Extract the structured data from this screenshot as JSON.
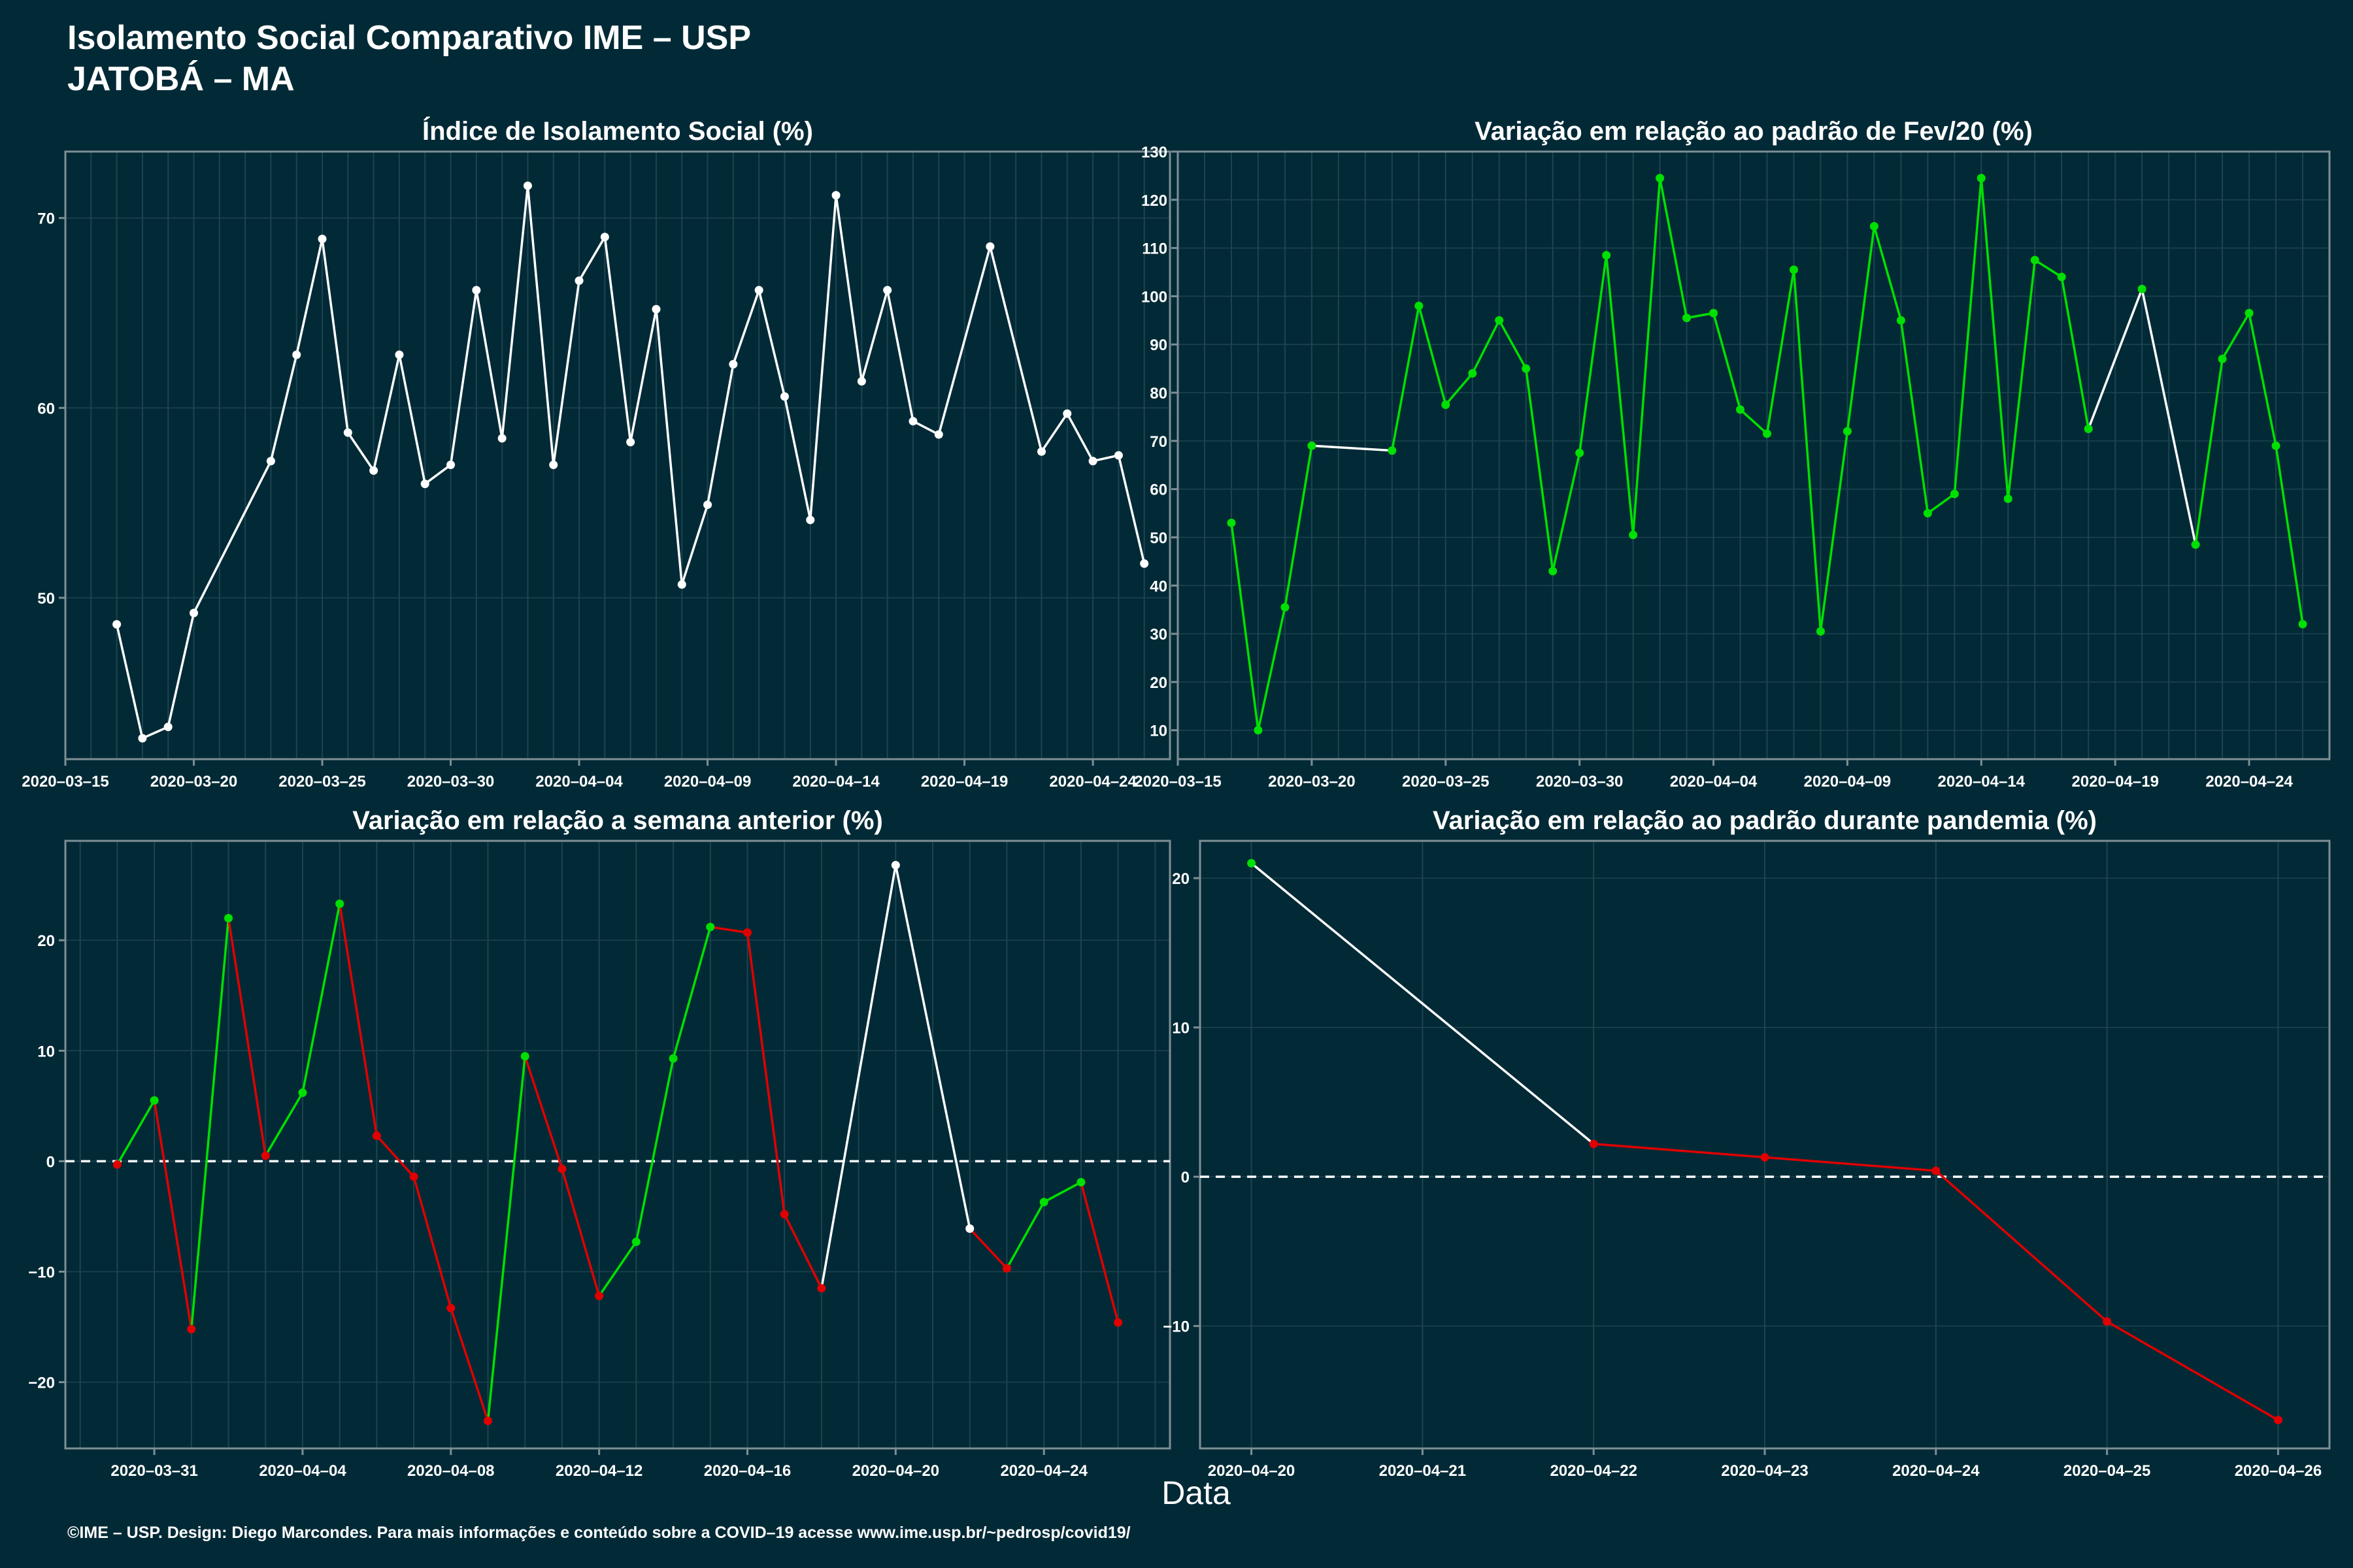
{
  "header": {
    "title_line1": "Isolamento Social Comparativo IME – USP",
    "title_line2": "JATOBÁ – MA"
  },
  "x_axis_label": "Data",
  "footer": "©IME – USP. Design: Diego Marcondes. Para mais informações e conteúdo sobre a COVID–19 acesse www.ime.usp.br/~pedrosp/covid19/",
  "colors": {
    "background": "#022a36",
    "neutral": "#ffffff",
    "increase": "#00e000",
    "decrease": "#e00000",
    "grid": "#1d4450"
  },
  "chart_data": [
    {
      "id": "isolamento",
      "type": "line",
      "title": "Índice de Isolamento Social (%)",
      "x_tick_labels": [
        "2020–03–15",
        "2020–03–20",
        "2020–03–25",
        "2020–03–30",
        "2020–04–04",
        "2020–04–09",
        "2020–04–14",
        "2020–04–19",
        "2020–04–24"
      ],
      "x_ticks": [
        "2020-03-15",
        "2020-03-20",
        "2020-03-25",
        "2020-03-30",
        "2020-04-04",
        "2020-04-09",
        "2020-04-14",
        "2020-04-19",
        "2020-04-24"
      ],
      "xlim": [
        "2020-03-15",
        "2020-04-27"
      ],
      "y_ticks": [
        50,
        60,
        70
      ],
      "ylim": [
        41.5,
        73.5
      ],
      "grid": true,
      "color_mode": "white",
      "points": [
        [
          "2020-03-17",
          48.6
        ],
        [
          "2020-03-18",
          42.6
        ],
        [
          "2020-03-19",
          43.2
        ],
        [
          "2020-03-20",
          49.2
        ],
        [
          "2020-03-23",
          57.2
        ],
        [
          "2020-03-24",
          62.8
        ],
        [
          "2020-03-25",
          68.9
        ],
        [
          "2020-03-26",
          58.7
        ],
        [
          "2020-03-27",
          56.7
        ],
        [
          "2020-03-28",
          62.8
        ],
        [
          "2020-03-29",
          56.0
        ],
        [
          "2020-03-30",
          57.0
        ],
        [
          "2020-03-31",
          66.2
        ],
        [
          "2020-04-01",
          58.4
        ],
        [
          "2020-04-02",
          71.7
        ],
        [
          "2020-04-03",
          57.0
        ],
        [
          "2020-04-04",
          66.7
        ],
        [
          "2020-04-05",
          69.0
        ],
        [
          "2020-04-06",
          58.2
        ],
        [
          "2020-04-07",
          65.2
        ],
        [
          "2020-04-08",
          50.7
        ],
        [
          "2020-04-09",
          54.9
        ],
        [
          "2020-04-10",
          62.3
        ],
        [
          "2020-04-11",
          66.2
        ],
        [
          "2020-04-12",
          60.6
        ],
        [
          "2020-04-13",
          54.1
        ],
        [
          "2020-04-14",
          71.2
        ],
        [
          "2020-04-15",
          61.4
        ],
        [
          "2020-04-16",
          66.2
        ],
        [
          "2020-04-17",
          59.3
        ],
        [
          "2020-04-18",
          58.6
        ],
        [
          "2020-04-20",
          68.5
        ],
        [
          "2020-04-22",
          57.7
        ],
        [
          "2020-04-23",
          59.7
        ],
        [
          "2020-04-24",
          57.2
        ],
        [
          "2020-04-25",
          57.5
        ],
        [
          "2020-04-26",
          51.8
        ]
      ]
    },
    {
      "id": "fev20",
      "type": "line",
      "title": "Variação em relação ao padrão de Fev/20 (%)",
      "x_tick_labels": [
        "2020–03–15",
        "2020–03–20",
        "2020–03–25",
        "2020–03–30",
        "2020–04–04",
        "2020–04–09",
        "2020–04–14",
        "2020–04–19",
        "2020–04–24"
      ],
      "x_ticks": [
        "2020-03-15",
        "2020-03-20",
        "2020-03-25",
        "2020-03-30",
        "2020-04-04",
        "2020-04-09",
        "2020-04-14",
        "2020-04-19",
        "2020-04-24"
      ],
      "xlim": [
        "2020-03-15",
        "2020-04-27"
      ],
      "y_ticks": [
        10,
        20,
        30,
        40,
        50,
        60,
        70,
        80,
        90,
        100,
        110,
        120,
        130
      ],
      "ylim": [
        4,
        130
      ],
      "grid": true,
      "color_mode": "increase_only",
      "points": [
        [
          "2020-03-17",
          53
        ],
        [
          "2020-03-18",
          10
        ],
        [
          "2020-03-19",
          35.5
        ],
        [
          "2020-03-20",
          69
        ],
        [
          "2020-03-23",
          68
        ],
        [
          "2020-03-24",
          98
        ],
        [
          "2020-03-25",
          77.5
        ],
        [
          "2020-03-26",
          84
        ],
        [
          "2020-03-27",
          95
        ],
        [
          "2020-03-28",
          85
        ],
        [
          "2020-03-29",
          43
        ],
        [
          "2020-03-30",
          67.5
        ],
        [
          "2020-03-31",
          108.5
        ],
        [
          "2020-04-01",
          50.5
        ],
        [
          "2020-04-02",
          124.5
        ],
        [
          "2020-04-03",
          95.5
        ],
        [
          "2020-04-04",
          96.5
        ],
        [
          "2020-04-05",
          76.5
        ],
        [
          "2020-04-06",
          71.5
        ],
        [
          "2020-04-07",
          105.5
        ],
        [
          "2020-04-08",
          30.5
        ],
        [
          "2020-04-09",
          72
        ],
        [
          "2020-04-10",
          114.5
        ],
        [
          "2020-04-11",
          95
        ],
        [
          "2020-04-12",
          55
        ],
        [
          "2020-04-13",
          59
        ],
        [
          "2020-04-14",
          124.5
        ],
        [
          "2020-04-15",
          58
        ],
        [
          "2020-04-16",
          107.5
        ],
        [
          "2020-04-17",
          104
        ],
        [
          "2020-04-18",
          72.5
        ],
        [
          "2020-04-20",
          101.5
        ],
        [
          "2020-04-22",
          48.5
        ],
        [
          "2020-04-23",
          87
        ],
        [
          "2020-04-24",
          96.5
        ],
        [
          "2020-04-25",
          69
        ],
        [
          "2020-04-26",
          32
        ]
      ]
    },
    {
      "id": "semana",
      "type": "line",
      "title": "Variação em relação a semana anterior (%)",
      "x_tick_labels": [
        "2020–03–31",
        "2020–04–04",
        "2020–04–08",
        "2020–04–12",
        "2020–04–16",
        "2020–04–20",
        "2020–04–24"
      ],
      "x_ticks": [
        "2020-03-31",
        "2020-04-04",
        "2020-04-08",
        "2020-04-12",
        "2020-04-16",
        "2020-04-20",
        "2020-04-24"
      ],
      "xlim": [
        "2020-03-28.6",
        "2020-04-27.4"
      ],
      "y_ticks": [
        -20,
        -10,
        0,
        10,
        20
      ],
      "ylim": [
        -26,
        29
      ],
      "grid": true,
      "zero_line": true,
      "color_mode": "sign",
      "points": [
        [
          "2020-03-30",
          -0.3
        ],
        [
          "2020-03-31",
          5.5
        ],
        [
          "2020-04-01",
          -15.2
        ],
        [
          "2020-04-02",
          22.0
        ],
        [
          "2020-04-03",
          0.5
        ],
        [
          "2020-04-04",
          6.2
        ],
        [
          "2020-04-05",
          23.3
        ],
        [
          "2020-04-06",
          2.3
        ],
        [
          "2020-04-07",
          -1.4
        ],
        [
          "2020-04-08",
          -13.3
        ],
        [
          "2020-04-09",
          -23.5
        ],
        [
          "2020-04-10",
          9.5
        ],
        [
          "2020-04-11",
          -0.7
        ],
        [
          "2020-04-12",
          -12.2
        ],
        [
          "2020-04-13",
          -7.3
        ],
        [
          "2020-04-14",
          9.3
        ],
        [
          "2020-04-15",
          21.2
        ],
        [
          "2020-04-16",
          20.7
        ],
        [
          "2020-04-17",
          -4.8
        ],
        [
          "2020-04-18",
          -11.5
        ],
        [
          "2020-04-20",
          26.8
        ],
        [
          "2020-04-22",
          -6.1
        ],
        [
          "2020-04-23",
          -9.7
        ],
        [
          "2020-04-24",
          -3.7
        ],
        [
          "2020-04-25",
          -1.9
        ],
        [
          "2020-04-26",
          -14.6
        ]
      ]
    },
    {
      "id": "pandemia",
      "type": "line",
      "title": "Variação em relação ao padrão durante pandemia (%)",
      "x_tick_labels": [
        "2020–04–20",
        "2020–04–21",
        "2020–04–22",
        "2020–04–23",
        "2020–04–24",
        "2020–04–25",
        "2020–04–26"
      ],
      "x_ticks": [
        "2020-04-20",
        "2020-04-21",
        "2020-04-22",
        "2020-04-23",
        "2020-04-24",
        "2020-04-25",
        "2020-04-26"
      ],
      "xlim": [
        "2020-04-19.7",
        "2020-04-26.3"
      ],
      "y_ticks": [
        -10,
        0,
        10,
        20
      ],
      "ylim": [
        -18.2,
        22.5
      ],
      "grid": true,
      "zero_line": true,
      "color_mode": "sign",
      "points": [
        [
          "2020-04-20",
          21.0
        ],
        [
          "2020-04-22",
          2.2
        ],
        [
          "2020-04-23",
          1.3
        ],
        [
          "2020-04-24",
          0.4
        ],
        [
          "2020-04-25",
          -9.7
        ],
        [
          "2020-04-26",
          -16.3
        ]
      ]
    }
  ]
}
